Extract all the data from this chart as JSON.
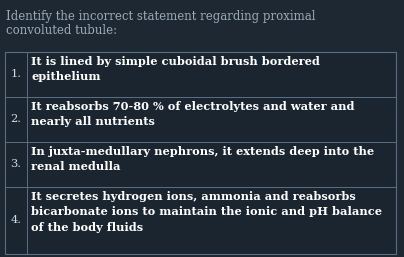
{
  "title_line1": "Identify the incorrect statement regarding proximal",
  "title_line2": "convoluted tubule:",
  "title_color": "#9aabb8",
  "title_fontsize": 8.5,
  "bg_color": "#1e2833",
  "table_bg": "#1a2530",
  "border_color": "#5a7080",
  "text_color": "#ffffff",
  "number_color": "#ccddee",
  "rows": [
    {
      "num": "1.",
      "text": "It is lined by simple cuboidal brush bordered\nepithelium"
    },
    {
      "num": "2.",
      "text": "It reabsorbs 70-80 % of electrolytes and water and\nnearly all nutrients"
    },
    {
      "num": "3.",
      "text": "In juxta-medullary nephrons, it extends deep into the\nrenal medulla"
    },
    {
      "num": "4.",
      "text": "It secretes hydrogen ions, ammonia and reabsorbs\nbicarbonate ions to maintain the ionic and pH balance\nof the body fluids"
    }
  ],
  "row_line_counts": [
    2,
    2,
    2,
    3
  ],
  "font_size": 8.2,
  "figw": 4.04,
  "figh": 2.57,
  "dpi": 100
}
